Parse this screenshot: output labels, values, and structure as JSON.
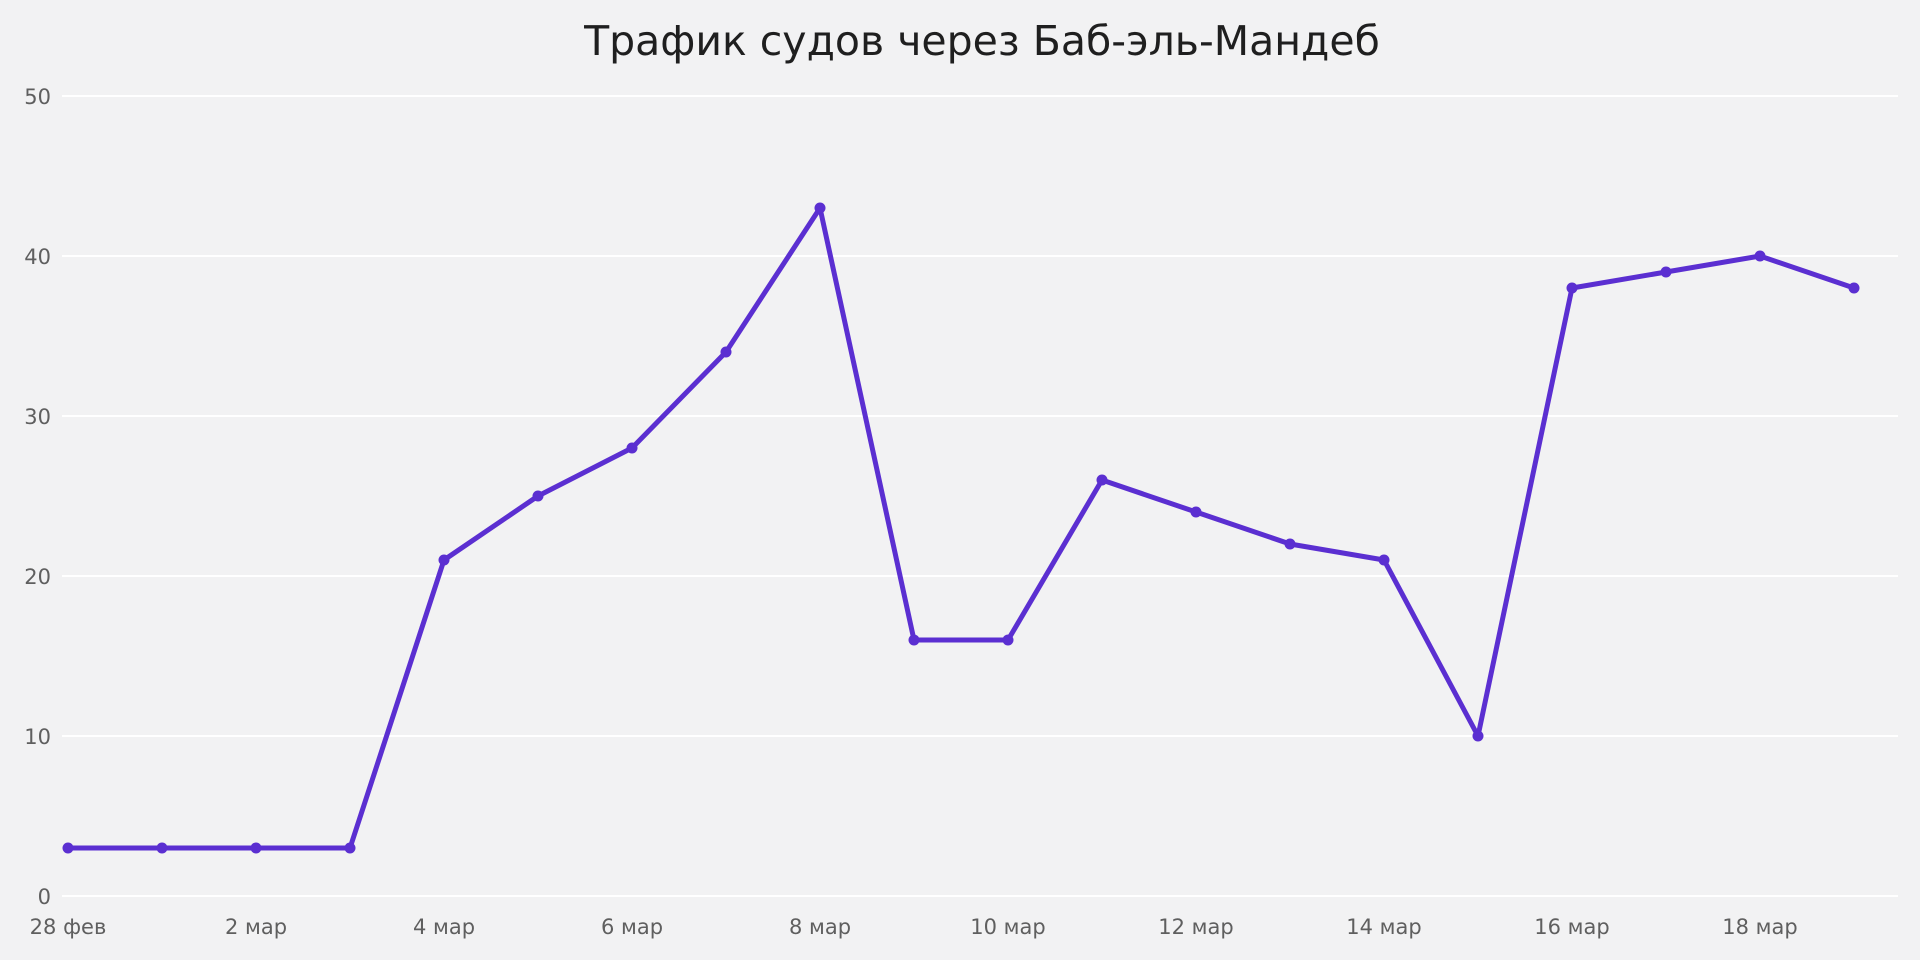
{
  "chart_data": {
    "type": "line",
    "title": "Трафик судов через Баб-эль-Мандеб",
    "xlabel": "",
    "ylabel": "",
    "x": [
      "28 фев",
      "1 мар",
      "2 мар",
      "3 мар",
      "4 мар",
      "5 мар",
      "6 мар",
      "7 мар",
      "8 мар",
      "9 мар",
      "10 мар",
      "11 мар",
      "12 мар",
      "13 мар",
      "14 мар",
      "15 мар",
      "16 мар",
      "17 мар",
      "18 мар",
      "19 мар"
    ],
    "x_tick_labels": [
      "28 фев",
      "2 мар",
      "4 мар",
      "6 мар",
      "8 мар",
      "10 мар",
      "12 мар",
      "14 мар",
      "16 мар",
      "18 мар"
    ],
    "x_tick_indices": [
      0,
      2,
      4,
      6,
      8,
      10,
      12,
      14,
      16,
      18
    ],
    "ylim": [
      0,
      50
    ],
    "y_ticks": [
      0,
      10,
      20,
      30,
      40,
      50
    ],
    "grid": "horizontal",
    "series": [
      {
        "values": [
          3,
          3,
          3,
          3,
          21,
          25,
          28,
          34,
          43,
          16,
          16,
          26,
          24,
          22,
          21,
          10,
          38,
          39,
          40,
          38
        ],
        "color": "#5b2fd1"
      }
    ]
  }
}
